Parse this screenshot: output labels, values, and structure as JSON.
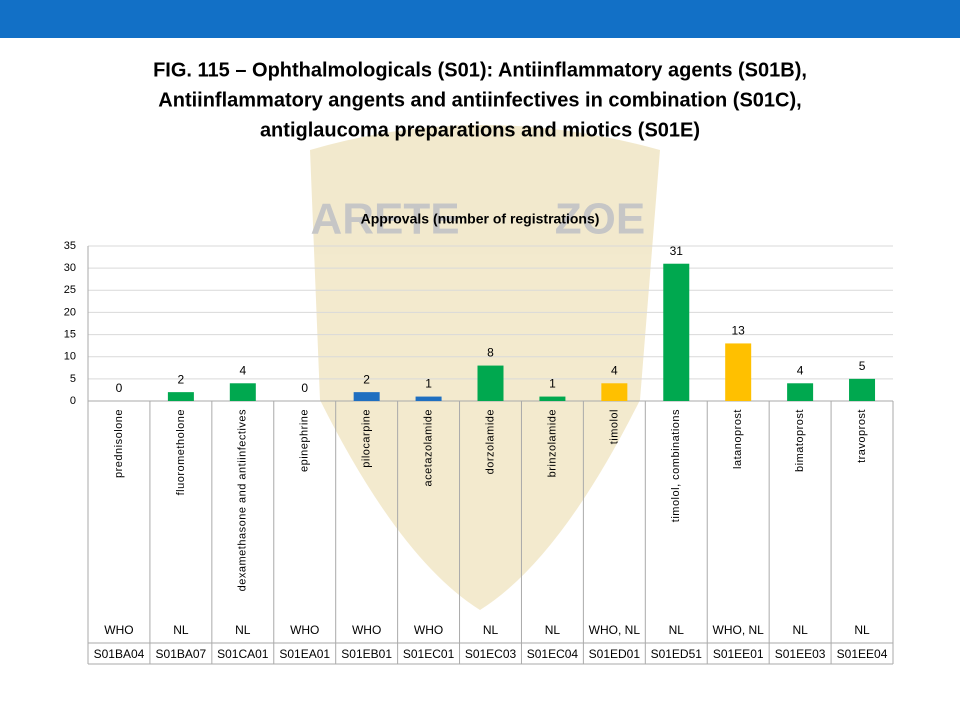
{
  "chart_data": {
    "type": "bar",
    "figure_title": [
      "FIG. 115 – Ophthalmologicals (S01): Antiinflammatory agents (S01B),",
      "Antiinflammatory angents and antiinfectives in combination (S01C),",
      "antiglaucoma preparations and miotics (S01E)"
    ],
    "watermark": [
      "ARETE",
      "ZOE"
    ],
    "title": "Approvals (number of registrations)",
    "categories": [
      "prednisolone",
      "fluorometholone",
      "dexamethasone and antiinfectives",
      "epinephrine",
      "pilocarpine",
      "acetazolamide",
      "dorzolamide",
      "brinzolamide",
      "timolol",
      "timolol, combinations",
      "latanoprost",
      "bimatoprost",
      "travoprost"
    ],
    "sources": [
      "WHO",
      "NL",
      "NL",
      "WHO",
      "WHO",
      "WHO",
      "NL",
      "NL",
      "WHO, NL",
      "NL",
      "WHO, NL",
      "NL",
      "NL"
    ],
    "atc_codes": [
      "S01BA04",
      "S01BA07",
      "S01CA01",
      "S01EA01",
      "S01EB01",
      "S01EC01",
      "S01EC03",
      "S01EC04",
      "S01ED01",
      "S01ED51",
      "S01EE01",
      "S01EE03",
      "S01EE04"
    ],
    "values": [
      0,
      2,
      4,
      0,
      2,
      1,
      8,
      1,
      4,
      31,
      13,
      4,
      5
    ],
    "colors": [
      "#00a84f",
      "#00a84f",
      "#00a84f",
      "#1f6fc0",
      "#1f6fc0",
      "#1f6fc0",
      "#00a84f",
      "#00a84f",
      "#ffc000",
      "#00a84f",
      "#ffc000",
      "#00a84f",
      "#00a84f"
    ],
    "ylim": [
      0,
      35
    ],
    "yticks": [
      0,
      5,
      10,
      15,
      20,
      25,
      30,
      35
    ],
    "grid": true
  }
}
